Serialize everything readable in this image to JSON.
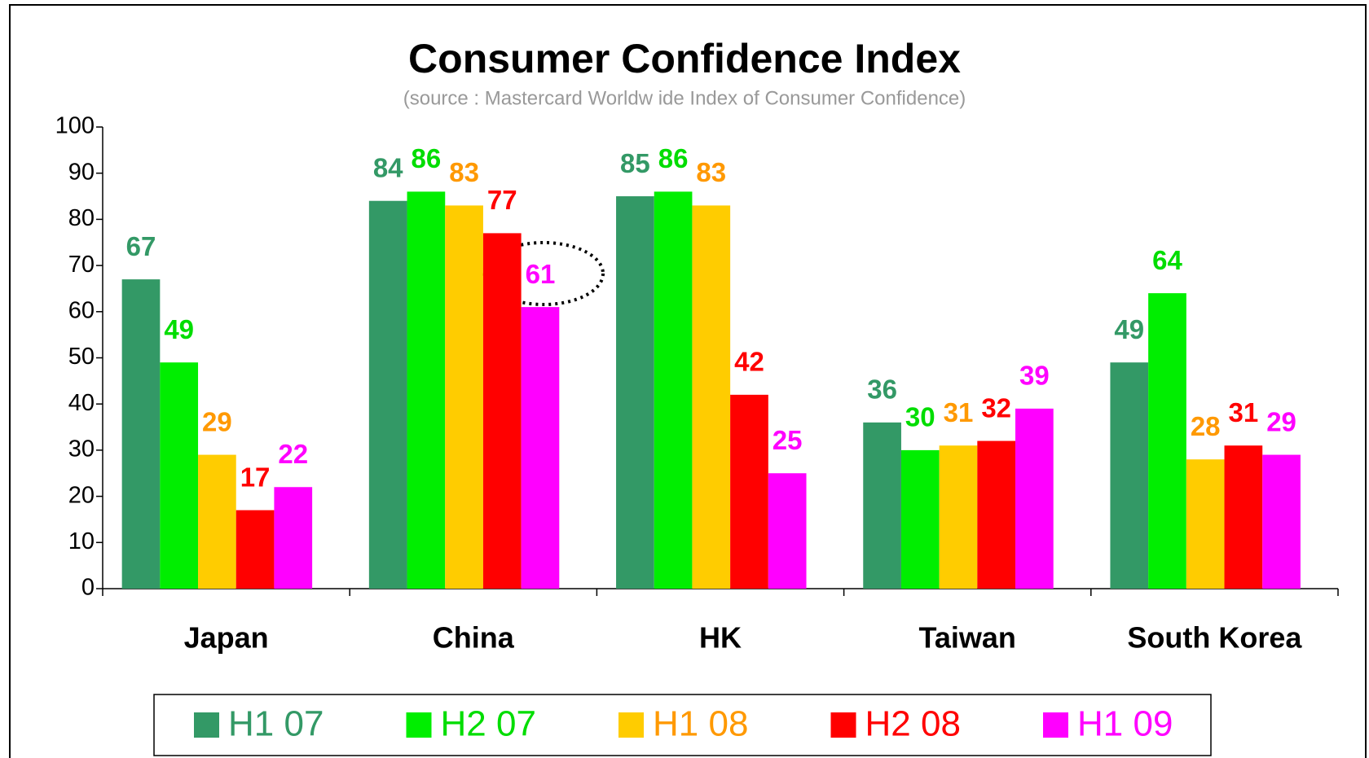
{
  "chart_data": {
    "type": "bar",
    "title": "Consumer Confidence Index",
    "subtitle": "(source : Mastercard Worldw ide Index of Consumer Confidence)",
    "categories": [
      "Japan",
      "China",
      "HK",
      "Taiwan",
      "South Korea"
    ],
    "series": [
      {
        "name": "H1 07",
        "color": "#339966",
        "label_color": "#339966",
        "values": [
          67,
          84,
          85,
          36,
          49
        ]
      },
      {
        "name": "H2 07",
        "color": "#00ee00",
        "label_color": "#00dd00",
        "values": [
          49,
          86,
          86,
          30,
          64
        ]
      },
      {
        "name": "H1 08",
        "color": "#ffcc00",
        "label_color": "#ff9900",
        "values": [
          29,
          83,
          83,
          31,
          28
        ]
      },
      {
        "name": "H2 08",
        "color": "#ff0000",
        "label_color": "#ff0000",
        "values": [
          17,
          77,
          42,
          32,
          31
        ]
      },
      {
        "name": "H1 09",
        "color": "#ff00ff",
        "label_color": "#ff00ff",
        "values": [
          22,
          61,
          25,
          39,
          29
        ]
      }
    ],
    "ylim": [
      0,
      100
    ],
    "yticks": [
      0,
      10,
      20,
      30,
      40,
      50,
      60,
      70,
      80,
      90,
      100
    ],
    "grid": false,
    "legend": "bottom"
  }
}
